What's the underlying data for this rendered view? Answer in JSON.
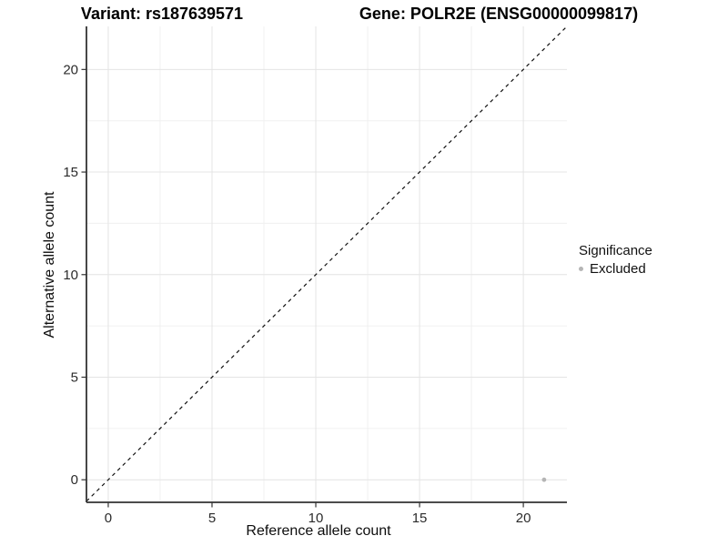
{
  "header": {
    "variant_title": "Variant: rs187639571",
    "gene_title": "Gene: POLR2E (ENSG00000099817)"
  },
  "chart_data": {
    "type": "scatter",
    "title": "Variant: rs187639571 — Gene: POLR2E (ENSG00000099817)",
    "xlabel": "Reference allele count",
    "ylabel": "Alternative allele count",
    "xlim": [
      -1.05,
      22.1
    ],
    "ylim": [
      -1.1,
      22.1
    ],
    "xticks": [
      0,
      5,
      10,
      15,
      20
    ],
    "yticks": [
      0,
      5,
      10,
      15,
      20
    ],
    "minor_xticks": [
      2.5,
      7.5,
      12.5,
      17.5
    ],
    "minor_yticks": [
      2.5,
      7.5,
      12.5,
      17.5
    ],
    "grid": true,
    "points": [
      {
        "x": 21,
        "y": 0,
        "series": "Excluded"
      }
    ],
    "reference_line": {
      "type": "identity",
      "slope": 1,
      "intercept": 0,
      "style": "dashed"
    },
    "legend": {
      "title": "Significance",
      "position": "right",
      "items": [
        {
          "label": "Excluded",
          "color": "#b5b5b5"
        }
      ]
    }
  },
  "colors": {
    "background": "#ffffff",
    "grid_major": "#e4e4e4",
    "grid_minor": "#f0f0f0",
    "axis_line": "#333333",
    "tick_mark": "#333333",
    "tick_text": "#2b2b2b",
    "reference_line": "#111111",
    "point_excluded": "#b5b5b5"
  }
}
